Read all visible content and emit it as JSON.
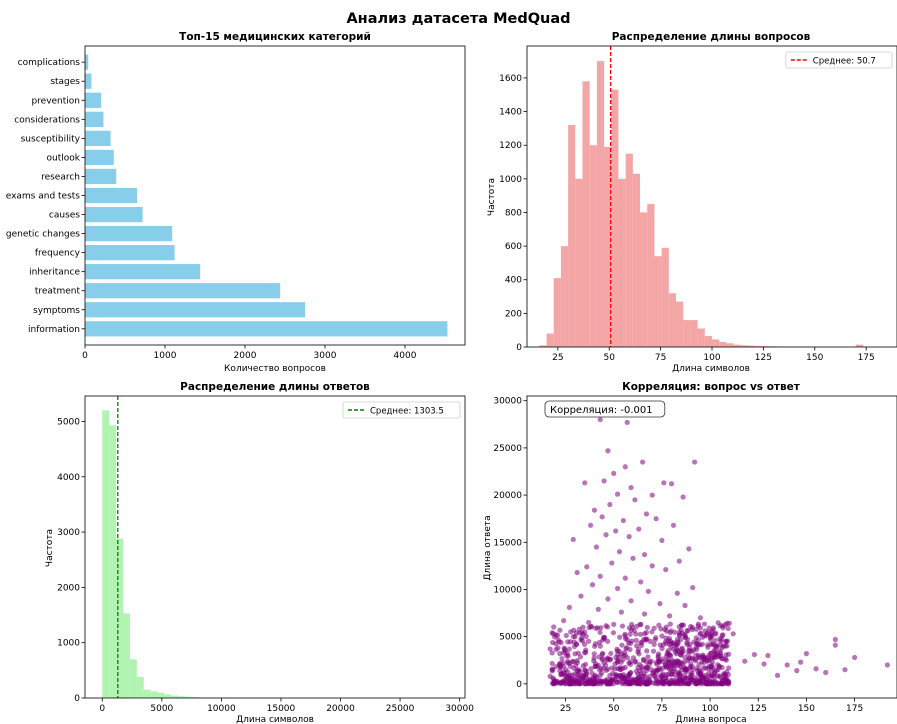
{
  "figure": {
    "title": "Анализ датасета MedQuad"
  },
  "chart_data": [
    {
      "type": "bar",
      "orientation": "horizontal",
      "title": "Топ-15 медицинских категорий",
      "xlabel": "Количество вопросов",
      "ylabel": "",
      "color": "#87ceeb",
      "categories": [
        "information",
        "symptoms",
        "treatment",
        "inheritance",
        "frequency",
        "genetic changes",
        "causes",
        "exams and tests",
        "research",
        "outlook",
        "susceptibility",
        "considerations",
        "prevention",
        "stages",
        "complications"
      ],
      "values": [
        4530,
        2750,
        2440,
        1440,
        1120,
        1090,
        720,
        650,
        390,
        360,
        320,
        230,
        200,
        80,
        40
      ],
      "xlim": [
        0,
        4750
      ],
      "xticks": [
        0,
        1000,
        2000,
        3000,
        4000
      ],
      "xtick_labels": [
        "0",
        "1000",
        "2000",
        "3000",
        "4000"
      ]
    },
    {
      "type": "histogram",
      "title": "Распределение длины вопросов",
      "xlabel": "Длина символов",
      "ylabel": "Частота",
      "color": "#f08080",
      "bin_start": 16,
      "bin_width": 3.5,
      "counts": [
        10,
        80,
        410,
        600,
        1320,
        1000,
        1580,
        1200,
        1700,
        1190,
        1530,
        1000,
        1150,
        1030,
        800,
        850,
        540,
        590,
        320,
        270,
        160,
        160,
        110,
        65,
        45,
        30,
        22,
        14,
        10,
        8,
        6,
        5,
        4,
        3,
        3,
        2,
        2,
        2,
        1,
        1,
        1,
        1,
        1,
        1,
        14,
        1,
        1
      ],
      "mean_line": {
        "value": 50.7,
        "color": "#ff0000",
        "label": "Среднее: 50.7"
      },
      "xlim": [
        10,
        190
      ],
      "ylim": [
        0,
        1790
      ],
      "xticks": [
        25,
        50,
        75,
        100,
        125,
        150,
        175
      ],
      "xtick_labels": [
        "25",
        "50",
        "75",
        "100",
        "125",
        "150",
        "175"
      ],
      "yticks": [
        0,
        200,
        400,
        600,
        800,
        1000,
        1200,
        1400,
        1600
      ],
      "ytick_labels": [
        "0",
        "200",
        "400",
        "600",
        "800",
        "1000",
        "1200",
        "1400",
        "1600"
      ],
      "legend_position": "top-right"
    },
    {
      "type": "histogram",
      "title": "Распределение длины ответов",
      "xlabel": "Длина символов",
      "ylabel": "Частота",
      "color": "#90ee90",
      "bin_start": 0,
      "bin_width": 580,
      "counts": [
        5200,
        4930,
        2880,
        1530,
        700,
        380,
        150,
        120,
        95,
        65,
        45,
        32,
        22,
        15,
        10,
        8,
        6,
        5,
        4,
        3,
        3,
        2,
        2,
        2,
        1,
        1,
        1,
        1,
        1,
        1,
        1,
        1,
        1,
        1,
        1,
        1,
        1,
        1,
        1,
        1,
        1,
        1,
        1,
        1,
        1,
        1,
        1,
        1,
        1,
        1
      ],
      "mean_line": {
        "value": 1303.5,
        "color": "#008000",
        "label": "Среднее: 1303.5"
      },
      "xlim": [
        -1450,
        30450
      ],
      "ylim": [
        0,
        5460
      ],
      "xticks": [
        0,
        5000,
        10000,
        15000,
        20000,
        25000,
        30000
      ],
      "xtick_labels": [
        "0",
        "5000",
        "10000",
        "15000",
        "20000",
        "25000",
        "30000"
      ],
      "yticks": [
        0,
        1000,
        2000,
        3000,
        4000,
        5000
      ],
      "ytick_labels": [
        "0",
        "1000",
        "2000",
        "3000",
        "4000",
        "5000"
      ],
      "legend_position": "top-right"
    },
    {
      "type": "scatter",
      "title": "Корреляция: вопрос vs ответ",
      "xlabel": "Длина вопроса",
      "ylabel": "Длина ответа",
      "color": "#800080",
      "annotation": "Корреляция: -0.001",
      "xlim": [
        5,
        197
      ],
      "ylim": [
        -1500,
        30500
      ],
      "xticks": [
        25,
        50,
        75,
        100,
        125,
        150,
        175
      ],
      "xtick_labels": [
        "25",
        "50",
        "75",
        "100",
        "125",
        "150",
        "175"
      ],
      "yticks": [
        0,
        5000,
        10000,
        15000,
        20000,
        25000,
        30000
      ],
      "ytick_labels": [
        "0",
        "5000",
        "10000",
        "15000",
        "20000",
        "25000",
        "30000"
      ],
      "points": [
        [
          43,
          28000
        ],
        [
          57,
          27700
        ],
        [
          47,
          24700
        ],
        [
          56,
          23000
        ],
        [
          65,
          23500
        ],
        [
          92,
          23500
        ],
        [
          50,
          22300
        ],
        [
          45,
          21500
        ],
        [
          76,
          21300
        ],
        [
          80,
          21200
        ],
        [
          35,
          21300
        ],
        [
          59,
          20800
        ],
        [
          52,
          20100
        ],
        [
          70,
          20000
        ],
        [
          86,
          19800
        ],
        [
          61,
          19500
        ],
        [
          48,
          19000
        ],
        [
          40,
          18400
        ],
        [
          67,
          18000
        ],
        [
          55,
          17300
        ],
        [
          44,
          17700
        ],
        [
          72,
          17500
        ],
        [
          38,
          16800
        ],
        [
          63,
          16400
        ],
        [
          81,
          16800
        ],
        [
          51,
          16200
        ],
        [
          29,
          15300
        ],
        [
          46,
          15800
        ],
        [
          58,
          15600
        ],
        [
          75,
          15200
        ],
        [
          89,
          14300
        ],
        [
          41,
          14500
        ],
        [
          53,
          14000
        ],
        [
          66,
          13700
        ],
        [
          60,
          13300
        ],
        [
          84,
          13000
        ],
        [
          36,
          12400
        ],
        [
          49,
          12800
        ],
        [
          70,
          12500
        ],
        [
          77,
          12100
        ],
        [
          31,
          11800
        ],
        [
          43,
          11400
        ],
        [
          56,
          11200
        ],
        [
          64,
          10800
        ],
        [
          91,
          10200
        ],
        [
          39,
          10500
        ],
        [
          52,
          10100
        ],
        [
          68,
          9800
        ],
        [
          83,
          9600
        ],
        [
          33,
          9300
        ],
        [
          47,
          9000
        ],
        [
          59,
          8800
        ],
        [
          74,
          8500
        ],
        [
          87,
          8300
        ],
        [
          27,
          8100
        ],
        [
          42,
          7900
        ],
        [
          54,
          7600
        ],
        [
          66,
          7400
        ],
        [
          79,
          7200
        ],
        [
          95,
          7000
        ],
        [
          24,
          6700
        ],
        [
          37,
          6500
        ],
        [
          50,
          6300
        ],
        [
          62,
          6100
        ],
        [
          71,
          5900
        ],
        [
          85,
          5700
        ],
        [
          101,
          5500
        ],
        [
          112,
          5300
        ],
        [
          20,
          5200
        ],
        [
          30,
          5000
        ],
        [
          45,
          4800
        ],
        [
          57,
          4700
        ],
        [
          69,
          4500
        ],
        [
          80,
          4300
        ],
        [
          96,
          4200
        ],
        [
          108,
          4000
        ],
        [
          165,
          4700
        ],
        [
          165,
          4100
        ],
        [
          150,
          3200
        ],
        [
          130,
          3000
        ],
        [
          123,
          3100
        ],
        [
          175,
          2800
        ],
        [
          192,
          2000
        ],
        [
          140,
          2000
        ],
        [
          160,
          1200
        ],
        [
          155,
          1600
        ],
        [
          145,
          1400
        ],
        [
          128,
          2100
        ],
        [
          118,
          2400
        ],
        [
          105,
          3500
        ],
        [
          17,
          3700
        ],
        [
          22,
          3200
        ],
        [
          17,
          800
        ],
        [
          170,
          1500
        ],
        [
          135,
          900
        ],
        [
          147,
          2300
        ]
      ],
      "dense_cloud_note": "dense cluster near x 20–110, y 0–6000"
    }
  ]
}
